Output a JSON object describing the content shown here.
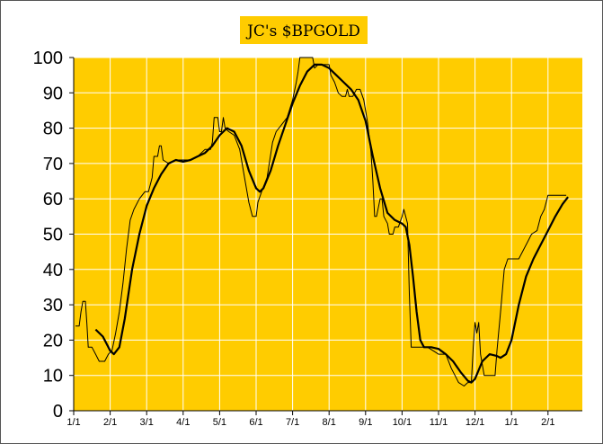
{
  "chart_data": {
    "type": "line",
    "title": "JC's $BPGOLD",
    "xlabel": "",
    "ylabel": "",
    "ylim": [
      0,
      100
    ],
    "yticks": [
      0,
      10,
      20,
      30,
      40,
      50,
      60,
      70,
      80,
      90,
      100
    ],
    "xticks": [
      "1/1",
      "2/1",
      "3/1",
      "4/1",
      "5/1",
      "6/1",
      "7/1",
      "8/1",
      "9/1",
      "10/1",
      "11/1",
      "12/1",
      "1/1",
      "2/1"
    ],
    "x_unit": "months from first 1/1 tick",
    "grid": true,
    "plot_background": "#FFCC00",
    "title_background": "#FFCC00",
    "series": [
      {
        "role": "raw",
        "color": "#000000",
        "points": [
          [
            0.05,
            24
          ],
          [
            0.15,
            24
          ],
          [
            0.2,
            28
          ],
          [
            0.25,
            31
          ],
          [
            0.32,
            31
          ],
          [
            0.36,
            25
          ],
          [
            0.4,
            18
          ],
          [
            0.5,
            18
          ],
          [
            0.6,
            16
          ],
          [
            0.7,
            14
          ],
          [
            0.85,
            14
          ],
          [
            0.95,
            16
          ],
          [
            1.05,
            17
          ],
          [
            1.15,
            22
          ],
          [
            1.25,
            28
          ],
          [
            1.35,
            36
          ],
          [
            1.45,
            46
          ],
          [
            1.55,
            54
          ],
          [
            1.65,
            57
          ],
          [
            1.8,
            60
          ],
          [
            1.95,
            62
          ],
          [
            2.05,
            62
          ],
          [
            2.15,
            66
          ],
          [
            2.2,
            72
          ],
          [
            2.3,
            72
          ],
          [
            2.35,
            75
          ],
          [
            2.4,
            75
          ],
          [
            2.45,
            71
          ],
          [
            2.6,
            70
          ],
          [
            2.8,
            71
          ],
          [
            3.0,
            71
          ],
          [
            3.2,
            71
          ],
          [
            3.4,
            72
          ],
          [
            3.6,
            74
          ],
          [
            3.75,
            74
          ],
          [
            3.8,
            76
          ],
          [
            3.85,
            83
          ],
          [
            3.95,
            83
          ],
          [
            4.0,
            79
          ],
          [
            4.05,
            79
          ],
          [
            4.1,
            83
          ],
          [
            4.15,
            80
          ],
          [
            4.25,
            79
          ],
          [
            4.4,
            78
          ],
          [
            4.55,
            74
          ],
          [
            4.7,
            65
          ],
          [
            4.8,
            59
          ],
          [
            4.9,
            55
          ],
          [
            5.0,
            55
          ],
          [
            5.05,
            59
          ],
          [
            5.15,
            62
          ],
          [
            5.3,
            66
          ],
          [
            5.45,
            76
          ],
          [
            5.55,
            79
          ],
          [
            5.7,
            81
          ],
          [
            5.85,
            83
          ],
          [
            6.0,
            88
          ],
          [
            6.1,
            93
          ],
          [
            6.15,
            96
          ],
          [
            6.2,
            100
          ],
          [
            6.35,
            100
          ],
          [
            6.4,
            100
          ],
          [
            6.55,
            100
          ],
          [
            6.6,
            97
          ],
          [
            6.7,
            98
          ],
          [
            6.85,
            98
          ],
          [
            7.0,
            98
          ],
          [
            7.05,
            95
          ],
          [
            7.15,
            93
          ],
          [
            7.25,
            90
          ],
          [
            7.35,
            89
          ],
          [
            7.45,
            89
          ],
          [
            7.5,
            91
          ],
          [
            7.55,
            89
          ],
          [
            7.65,
            89
          ],
          [
            7.75,
            91
          ],
          [
            7.85,
            91
          ],
          [
            7.95,
            88
          ],
          [
            8.05,
            82
          ],
          [
            8.15,
            73
          ],
          [
            8.2,
            65
          ],
          [
            8.25,
            55
          ],
          [
            8.3,
            55
          ],
          [
            8.4,
            60
          ],
          [
            8.45,
            60
          ],
          [
            8.5,
            55
          ],
          [
            8.6,
            53
          ],
          [
            8.65,
            50
          ],
          [
            8.75,
            50
          ],
          [
            8.8,
            52
          ],
          [
            8.9,
            52
          ],
          [
            9.0,
            55
          ],
          [
            9.05,
            57
          ],
          [
            9.15,
            53
          ],
          [
            9.2,
            33
          ],
          [
            9.25,
            18
          ],
          [
            9.4,
            18
          ],
          [
            9.55,
            18
          ],
          [
            9.7,
            18
          ],
          [
            9.85,
            17
          ],
          [
            10.0,
            16
          ],
          [
            10.1,
            16
          ],
          [
            10.2,
            16
          ],
          [
            10.35,
            12
          ],
          [
            10.45,
            10
          ],
          [
            10.55,
            8
          ],
          [
            10.7,
            7
          ],
          [
            10.8,
            8
          ],
          [
            10.9,
            8
          ],
          [
            10.95,
            18
          ],
          [
            11.0,
            25
          ],
          [
            11.05,
            22
          ],
          [
            11.1,
            25
          ],
          [
            11.15,
            16
          ],
          [
            11.25,
            10
          ],
          [
            11.45,
            10
          ],
          [
            11.55,
            10
          ],
          [
            11.6,
            17
          ],
          [
            11.7,
            28
          ],
          [
            11.8,
            40
          ],
          [
            11.9,
            43
          ],
          [
            12.05,
            43
          ],
          [
            12.2,
            43
          ],
          [
            12.3,
            45
          ],
          [
            12.45,
            48
          ],
          [
            12.55,
            50
          ],
          [
            12.7,
            51
          ],
          [
            12.8,
            55
          ],
          [
            12.9,
            57
          ],
          [
            13.0,
            61
          ],
          [
            13.2,
            61
          ],
          [
            13.4,
            61
          ],
          [
            13.5,
            61
          ]
        ]
      },
      {
        "role": "smoothed",
        "color": "#000000",
        "points": [
          [
            0.6,
            23
          ],
          [
            0.8,
            21
          ],
          [
            1.0,
            17
          ],
          [
            1.1,
            16
          ],
          [
            1.25,
            18
          ],
          [
            1.4,
            26
          ],
          [
            1.6,
            40
          ],
          [
            1.8,
            50
          ],
          [
            2.0,
            58
          ],
          [
            2.2,
            63
          ],
          [
            2.4,
            67
          ],
          [
            2.6,
            70
          ],
          [
            2.8,
            71
          ],
          [
            3.0,
            70.5
          ],
          [
            3.2,
            71
          ],
          [
            3.4,
            72
          ],
          [
            3.6,
            73
          ],
          [
            3.8,
            75
          ],
          [
            4.0,
            78
          ],
          [
            4.2,
            80
          ],
          [
            4.4,
            79
          ],
          [
            4.6,
            75
          ],
          [
            4.8,
            68
          ],
          [
            5.0,
            63
          ],
          [
            5.1,
            62
          ],
          [
            5.2,
            63
          ],
          [
            5.4,
            68
          ],
          [
            5.6,
            75
          ],
          [
            5.8,
            81
          ],
          [
            6.0,
            87
          ],
          [
            6.2,
            92
          ],
          [
            6.4,
            96
          ],
          [
            6.6,
            98
          ],
          [
            6.8,
            98
          ],
          [
            7.0,
            97
          ],
          [
            7.2,
            95
          ],
          [
            7.4,
            93
          ],
          [
            7.6,
            91
          ],
          [
            7.8,
            88
          ],
          [
            8.0,
            82
          ],
          [
            8.2,
            72
          ],
          [
            8.4,
            63
          ],
          [
            8.6,
            56
          ],
          [
            8.8,
            54
          ],
          [
            9.0,
            53
          ],
          [
            9.1,
            52
          ],
          [
            9.2,
            47
          ],
          [
            9.3,
            38
          ],
          [
            9.4,
            28
          ],
          [
            9.5,
            20
          ],
          [
            9.6,
            18
          ],
          [
            9.8,
            18
          ],
          [
            10.0,
            17.5
          ],
          [
            10.2,
            16
          ],
          [
            10.4,
            14
          ],
          [
            10.6,
            11
          ],
          [
            10.8,
            8.5
          ],
          [
            10.9,
            8
          ],
          [
            11.0,
            9
          ],
          [
            11.2,
            14
          ],
          [
            11.4,
            16
          ],
          [
            11.6,
            15.5
          ],
          [
            11.7,
            15
          ],
          [
            11.85,
            16
          ],
          [
            12.0,
            20
          ],
          [
            12.2,
            30
          ],
          [
            12.4,
            38
          ],
          [
            12.6,
            43
          ],
          [
            12.8,
            47
          ],
          [
            13.0,
            51
          ],
          [
            13.2,
            55
          ],
          [
            13.4,
            58.5
          ],
          [
            13.55,
            60.5
          ]
        ]
      }
    ]
  }
}
